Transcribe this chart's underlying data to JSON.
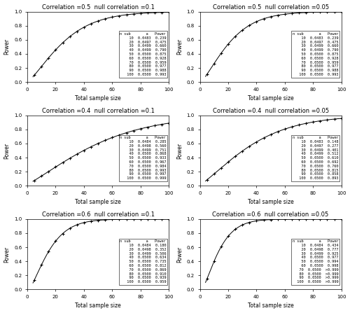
{
  "panels": [
    {
      "title": "Correlation =0.5  null correlation =0.1",
      "rho": 0.5,
      "rho0": 0.1,
      "table_n": [
        10,
        20,
        30,
        40,
        50,
        60,
        70,
        80,
        90,
        100
      ],
      "table_alpha": [
        "0.0483",
        "0.0497",
        "0.0499",
        "0.0499",
        "0.0500",
        "0.0500",
        "0.0500",
        "0.0500",
        "0.0500",
        "0.0500"
      ],
      "table_power": [
        "0.239",
        "0.475",
        "0.660",
        "0.790",
        "0.875",
        "0.928",
        "0.959",
        "0.977",
        "0.988",
        "0.993"
      ]
    },
    {
      "title": "Correlation =0.5  null correlation =0.05",
      "rho": 0.5,
      "rho0": 0.05,
      "table_n": [
        10,
        20,
        30,
        40,
        50,
        60,
        70,
        80,
        90,
        100
      ],
      "table_alpha": [
        "0.0483",
        "0.0497",
        "0.0499",
        "0.0499",
        "0.0500",
        "0.0500",
        "0.0500",
        "0.0500",
        "0.0500",
        "0.0500"
      ],
      "table_power": [
        "0.239",
        "0.475",
        "0.660",
        "0.790",
        "0.875",
        "0.928",
        "0.959",
        "0.977",
        "0.988",
        "0.993"
      ]
    },
    {
      "title": "Correlation =0.4  null correlation =0.1",
      "rho": 0.4,
      "rho0": 0.1,
      "table_n": [
        10,
        20,
        30,
        40,
        50,
        60,
        70,
        80,
        90,
        100
      ],
      "table_alpha": [
        "0.0484",
        "0.0498",
        "0.0499",
        "0.0500",
        "0.0500",
        "0.0500",
        "0.0500",
        "0.0500",
        "0.0500",
        "0.0500"
      ],
      "table_power": [
        "0.285",
        "0.560",
        "0.751",
        "0.868",
        "0.933",
        "0.967",
        "0.984",
        "0.993",
        "0.997",
        "0.999"
      ]
    },
    {
      "title": "Correlation =0.4  null correlation =0.05",
      "rho": 0.4,
      "rho0": 0.05,
      "table_n": [
        10,
        20,
        30,
        40,
        50,
        60,
        70,
        80,
        90,
        100
      ],
      "table_alpha": [
        "0.0483",
        "0.0497",
        "0.0499",
        "0.0499",
        "0.0500",
        "0.0500",
        "0.0500",
        "0.0500",
        "0.0500",
        "0.0500"
      ],
      "table_power": [
        "0.148",
        "0.277",
        "0.401",
        "0.512",
        "0.610",
        "0.692",
        "0.760",
        "0.815",
        "0.858",
        "0.893"
      ]
    },
    {
      "title": "Correlation =0.6  null correlation =0.1",
      "rho": 0.6,
      "rho0": 0.1,
      "table_n": [
        10,
        20,
        30,
        40,
        50,
        60,
        70,
        80,
        90,
        100
      ],
      "table_alpha": [
        "0.0484",
        "0.0498",
        "0.0499",
        "0.0500",
        "0.0500",
        "0.0500",
        "0.0500",
        "0.0500",
        "0.0500",
        "0.0500"
      ],
      "table_power": [
        "0.180",
        "0.352",
        "0.506",
        "0.634",
        "0.735",
        "0.812",
        "0.869",
        "0.910",
        "0.939",
        "0.959"
      ]
    },
    {
      "title": "Correlation =0.6  null correlation =0.05",
      "rho": 0.6,
      "rho0": 0.05,
      "table_n": [
        10,
        20,
        30,
        40,
        50,
        60,
        70,
        80,
        90,
        100
      ],
      "table_alpha": [
        "0.0484",
        "0.0498",
        "0.0499",
        "0.0500",
        "0.0500",
        "0.0500",
        "0.0500",
        "0.0500",
        "0.0500",
        "0.0500"
      ],
      "table_power": [
        "0.434",
        "0.777",
        "0.925",
        "0.977",
        "0.994",
        "0.998",
        ">0.999",
        ">0.999",
        ">0.999",
        ">0.999"
      ]
    }
  ],
  "xlabel": "Total sample size",
  "ylabel": "Power",
  "xlim": [
    0,
    100
  ],
  "ylim": [
    0,
    1.0
  ],
  "figsize": [
    5.0,
    4.47
  ],
  "dpi": 100
}
